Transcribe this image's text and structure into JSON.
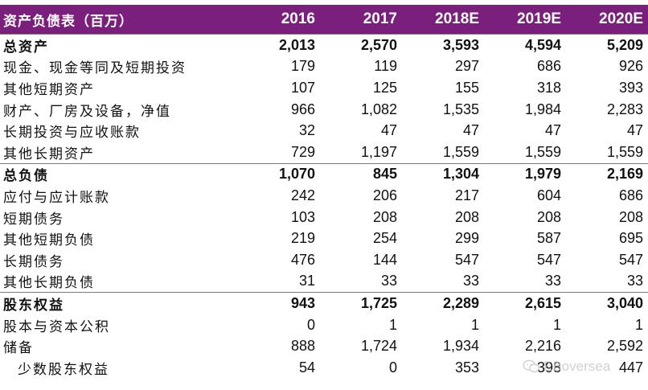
{
  "table": {
    "title": "资产负债表（百万）",
    "years": [
      "2016",
      "2017",
      "2018E",
      "2019E",
      "2020E"
    ],
    "rows": [
      {
        "label": "总资产",
        "values": [
          "2,013",
          "2,570",
          "3,593",
          "4,594",
          "5,209"
        ],
        "total": true
      },
      {
        "label": "现金、现金等同及短期投资",
        "values": [
          "179",
          "119",
          "297",
          "686",
          "926"
        ]
      },
      {
        "label": "其他短期资产",
        "values": [
          "107",
          "125",
          "155",
          "318",
          "393"
        ]
      },
      {
        "label": "财产、厂房及设备，净值",
        "values": [
          "966",
          "1,082",
          "1,535",
          "1,984",
          "2,283"
        ]
      },
      {
        "label": "长期投资与应收账款",
        "values": [
          "32",
          "47",
          "47",
          "47",
          "47"
        ]
      },
      {
        "label": "其他长期资产",
        "values": [
          "729",
          "1,197",
          "1,559",
          "1,559",
          "1,559"
        ]
      },
      {
        "label": "总负债",
        "values": [
          "1,070",
          "845",
          "1,304",
          "1,979",
          "2,169"
        ],
        "total": true
      },
      {
        "label": "应付与应计账款",
        "values": [
          "242",
          "206",
          "217",
          "604",
          "686"
        ]
      },
      {
        "label": "短期债务",
        "values": [
          "103",
          "208",
          "208",
          "208",
          "208"
        ]
      },
      {
        "label": "其他短期负债",
        "values": [
          "219",
          "254",
          "299",
          "587",
          "695"
        ]
      },
      {
        "label": "长期债务",
        "values": [
          "476",
          "144",
          "547",
          "547",
          "547"
        ]
      },
      {
        "label": "其他长期负债",
        "values": [
          "31",
          "33",
          "33",
          "33",
          "33"
        ]
      },
      {
        "label": "股东权益",
        "values": [
          "943",
          "1,725",
          "2,289",
          "2,615",
          "3,040"
        ],
        "total": true
      },
      {
        "label": "股本与资本公积",
        "values": [
          "0",
          "1",
          "1",
          "1",
          "1"
        ]
      },
      {
        "label": "储备",
        "values": [
          "888",
          "1,724",
          "1,934",
          "2,216",
          "2,592"
        ]
      },
      {
        "label": "少数股东权益",
        "values": [
          "54",
          "0",
          "353",
          "398",
          "447"
        ],
        "indent": true
      }
    ]
  },
  "watermark": {
    "text": "EBoversea",
    "icon": "wechat-icon"
  },
  "colors": {
    "header_bg": "#7a1f7b",
    "header_text": "#ffffff"
  }
}
